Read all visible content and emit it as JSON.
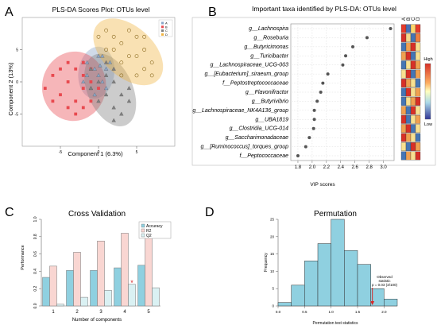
{
  "panels": {
    "A": {
      "letter": "A",
      "title": "PLS-DA Scores Plot: OTUs level",
      "xlabel": "Component 1 (6.3%)",
      "ylabel": "Component 2 (13%)",
      "legend": [
        "A",
        "B",
        "C",
        "D"
      ]
    },
    "B": {
      "letter": "B",
      "title": "Important taxa identified by PLS-DA: OTUs level",
      "xlabel": "VIP scores",
      "group_labels": [
        "A",
        "B",
        "C",
        "D"
      ],
      "scale_high": "High",
      "scale_low": "Low"
    },
    "C": {
      "letter": "C",
      "title": "Cross Validation",
      "xlabel": "Number of components",
      "ylabel": "Performance"
    },
    "D": {
      "letter": "D",
      "title": "Permutation",
      "xlabel": "Permutation test statistics",
      "ylabel": "Frequency",
      "annotation": [
        "Observed",
        "statistic",
        "p = 0.03 (3/100)"
      ]
    }
  },
  "colors": {
    "A": "#8aa6c8",
    "B": "#e8494f",
    "C": "#7f7f7f",
    "D": "#f0b442",
    "bar_accuracy": "#8fd0e0",
    "bar_r2": "#f9d6d2",
    "bar_q2": "#daf1f3",
    "hist": "#8fd0e0",
    "vip_dot": "#555555"
  },
  "chart_data": [
    {
      "type": "scatter",
      "xlim": [
        -10,
        10
      ],
      "ylim": [
        -10,
        10
      ],
      "xticks": [
        -5,
        0,
        5
      ],
      "yticks": [
        -5,
        0,
        5
      ],
      "series": [
        {
          "name": "A",
          "color": "#8aa6c8",
          "marker": "triangle",
          "points": [
            [
              -2,
              3
            ],
            [
              -1.5,
              1
            ],
            [
              -0.5,
              2
            ],
            [
              0,
              4
            ],
            [
              0.5,
              0
            ],
            [
              1,
              2
            ],
            [
              -1,
              -1
            ],
            [
              0,
              1
            ],
            [
              1.5,
              3
            ],
            [
              -2,
              0
            ],
            [
              -0.5,
              -2
            ],
            [
              0.5,
              4
            ],
            [
              1,
              -1
            ],
            [
              -1.5,
              3
            ],
            [
              0.2,
              2.5
            ]
          ]
        },
        {
          "name": "B",
          "color": "#e8494f",
          "marker": "square",
          "points": [
            [
              -7,
              -1
            ],
            [
              -6,
              1
            ],
            [
              -5,
              -2
            ],
            [
              -4,
              0
            ],
            [
              -3,
              -3
            ],
            [
              -2,
              1
            ],
            [
              -3,
              2
            ],
            [
              -4,
              -4
            ],
            [
              -2,
              -1
            ],
            [
              -1,
              0
            ],
            [
              -5,
              2
            ],
            [
              -3,
              -5
            ],
            [
              -1,
              -3
            ],
            [
              -2,
              3
            ],
            [
              -4,
              3
            ],
            [
              -6,
              -3
            ],
            [
              -1,
              2
            ],
            [
              0,
              -1
            ],
            [
              -2,
              -4
            ]
          ]
        },
        {
          "name": "C",
          "color": "#7f7f7f",
          "marker": "triangle",
          "points": [
            [
              -1,
              2
            ],
            [
              0,
              0
            ],
            [
              1,
              -2
            ],
            [
              2,
              -4
            ],
            [
              3,
              -2
            ],
            [
              2,
              0
            ],
            [
              1,
              1
            ],
            [
              4,
              -3
            ],
            [
              3,
              -5
            ],
            [
              0,
              -3
            ],
            [
              1,
              3
            ],
            [
              2,
              2
            ],
            [
              -1,
              -1
            ],
            [
              2,
              -6
            ],
            [
              4,
              -1
            ]
          ]
        },
        {
          "name": "D",
          "color": "#f0b442",
          "marker": "circle",
          "points": [
            [
              0,
              7
            ],
            [
              1,
              8
            ],
            [
              2,
              5
            ],
            [
              3,
              6
            ],
            [
              4,
              4
            ],
            [
              5,
              7
            ],
            [
              6,
              5
            ],
            [
              6,
              2
            ],
            [
              5,
              1
            ],
            [
              7,
              3
            ],
            [
              3,
              3
            ],
            [
              2,
              7
            ],
            [
              4,
              8
            ],
            [
              1,
              5
            ],
            [
              5,
              4
            ],
            [
              7,
              1
            ],
            [
              6,
              7
            ],
            [
              3,
              1
            ]
          ]
        }
      ]
    },
    {
      "type": "scatter",
      "xlim": [
        1.7,
        3.15
      ],
      "xticks": [
        1.8,
        2.0,
        2.2,
        2.4,
        2.6,
        2.8,
        3.0
      ],
      "categories": [
        "g__Lachnospira",
        "g__Roseburia",
        "g__Butyricimonas",
        "g__Turicibacter",
        "g__Lachnospiraceae_UCG-003",
        "g__[Eubacterium]_siraeum_group",
        "f__Peptostreptococcaceae",
        "g__Flavonifractor",
        "g__Butyrivibrio",
        "g__Lachnospiraceae_NK4A136_group",
        "g__UBA1819",
        "g__Clostridia_UCG-014",
        "g__Saccharimonadaceae",
        "g__[Ruminococcus]_torques_group",
        "f__Peptococcaceae"
      ],
      "values": [
        3.1,
        2.77,
        2.57,
        2.47,
        2.43,
        2.22,
        2.15,
        2.12,
        2.07,
        2.03,
        2.03,
        2.02,
        1.96,
        1.91,
        1.8
      ],
      "heatmap": [
        [
          "#e63a2a",
          "#4a6fb4",
          "#fcd56a",
          "#e63a2a"
        ],
        [
          "#d73027",
          "#f6d78a",
          "#4575b4",
          "#f08040"
        ],
        [
          "#4575b4",
          "#f0a050",
          "#d73027",
          "#f8e090"
        ],
        [
          "#f0a050",
          "#d73027",
          "#4575b4",
          "#f8e090"
        ],
        [
          "#4575b4",
          "#f8e090",
          "#d73027",
          "#f0a050"
        ],
        [
          "#f8e090",
          "#d73027",
          "#4575b4",
          "#f0a050"
        ],
        [
          "#d73027",
          "#f0a050",
          "#f8e090",
          "#4575b4"
        ],
        [
          "#4575b4",
          "#d73027",
          "#f8e090",
          "#f0a050"
        ],
        [
          "#4575b4",
          "#f8e090",
          "#f0a050",
          "#d73027"
        ],
        [
          "#f0a050",
          "#4575b4",
          "#d73027",
          "#f8e090"
        ],
        [
          "#d73027",
          "#4575b4",
          "#f8e090",
          "#f0a050"
        ],
        [
          "#f0a050",
          "#d73027",
          "#4575b4",
          "#f8e090"
        ],
        [
          "#d73027",
          "#f0a050",
          "#f8e090",
          "#4575b4"
        ],
        [
          "#f8e090",
          "#4575b4",
          "#d73027",
          "#f0a050"
        ],
        [
          "#4575b4",
          "#f0a050",
          "#f8e090",
          "#d73027"
        ]
      ]
    },
    {
      "type": "bar",
      "categories": [
        "1",
        "2",
        "3",
        "4",
        "5"
      ],
      "ylim": [
        0,
        1.0
      ],
      "yticks": [
        0,
        0.2,
        0.4,
        0.6,
        0.8,
        1.0
      ],
      "series": [
        {
          "name": "Accuracy",
          "values": [
            0.33,
            0.41,
            0.41,
            0.44,
            0.47
          ]
        },
        {
          "name": "R2",
          "values": [
            0.46,
            0.62,
            0.75,
            0.84,
            0.91
          ]
        },
        {
          "name": "Q2",
          "values": [
            0.02,
            0.1,
            0.18,
            0.25,
            0.21
          ]
        }
      ],
      "best_marker": {
        "component": "4",
        "series": "Q2"
      }
    },
    {
      "type": "bar",
      "xlim": [
        0,
        2.25
      ],
      "ylim": [
        0,
        25
      ],
      "xticks": [
        0.0,
        0.5,
        1.0,
        1.5,
        2.0
      ],
      "yticks": [
        0,
        5,
        10,
        15,
        20,
        25
      ],
      "bins": [
        [
          0.0,
          0.25
        ],
        [
          0.25,
          0.5
        ],
        [
          0.5,
          0.75
        ],
        [
          0.75,
          1.0
        ],
        [
          1.0,
          1.25
        ],
        [
          1.25,
          1.5
        ],
        [
          1.5,
          1.75
        ],
        [
          1.75,
          2.0
        ],
        [
          2.0,
          2.25
        ]
      ],
      "values": [
        1,
        6,
        13,
        18,
        25,
        16,
        12,
        5,
        2
      ],
      "observed": 1.78
    }
  ]
}
